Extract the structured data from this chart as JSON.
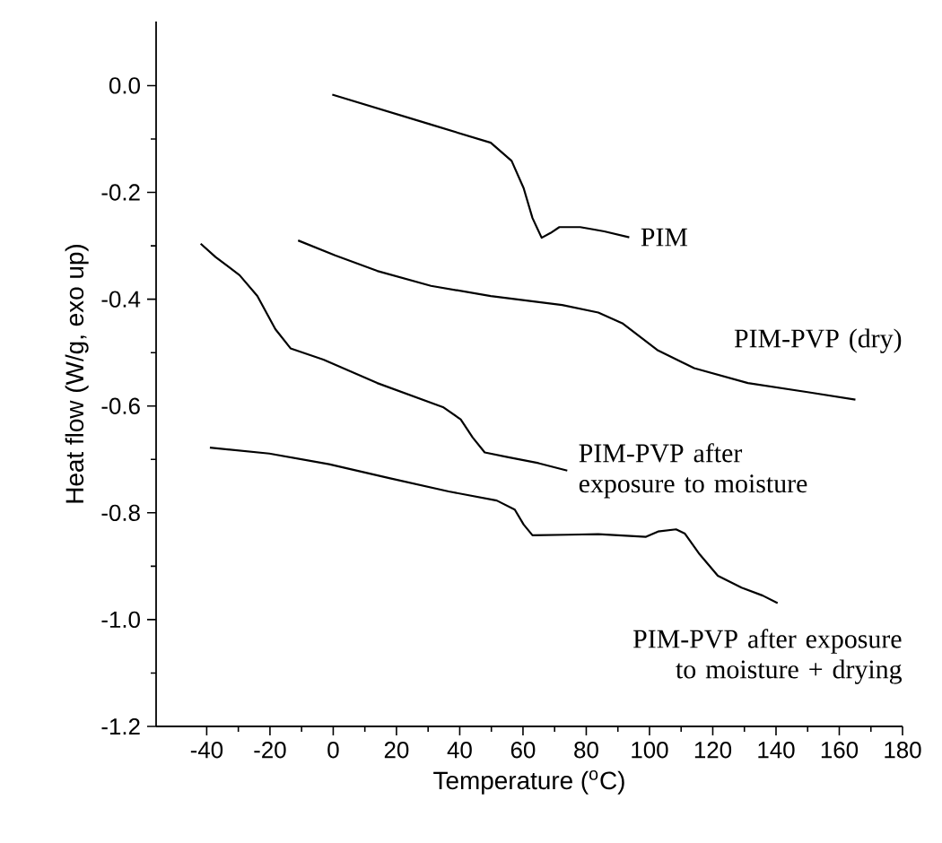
{
  "chart_data": {
    "type": "line",
    "xlabel": "Temperature ($^{o}$C)",
    "ylabel": "Heat flow (W/g, exo up)",
    "xlim": [
      -56,
      180
    ],
    "ylim": [
      -1.2,
      0.12
    ],
    "xticks": [
      -40,
      -20,
      0,
      20,
      40,
      60,
      80,
      100,
      120,
      140,
      160,
      180
    ],
    "yticks": [
      {
        "value": 0,
        "label": "0.0"
      },
      -0.2,
      -0.4,
      -0.6,
      -0.8,
      {
        "value": -1,
        "label": "-1.0"
      },
      -1.2
    ],
    "grid": false,
    "line_style": "solid",
    "series": [
      {
        "name": "PIM",
        "color": "#000000",
        "x": [
          -0.3,
          30.9,
          49.8,
          56.4,
          60.2,
          63,
          65.9,
          68.7,
          71.5,
          78.1,
          85.7,
          93.6
        ],
        "values": [
          -0.017,
          -0.073,
          -0.107,
          -0.141,
          -0.192,
          -0.248,
          -0.285,
          -0.276,
          -0.265,
          -0.265,
          -0.273,
          -0.284
        ]
      },
      {
        "name": "PIM-PVP (dry)",
        "color": "#000000",
        "x": [
          -11.1,
          0.6,
          13.9,
          30.9,
          49.8,
          72.4,
          83.8,
          91.4,
          102.7,
          114.1,
          131.1,
          150,
          165.1
        ],
        "values": [
          -0.29,
          -0.318,
          -0.347,
          -0.375,
          -0.394,
          -0.411,
          -0.425,
          -0.445,
          -0.496,
          -0.529,
          -0.557,
          -0.574,
          -0.588
        ]
      },
      {
        "name": "PIM-PVP after exposure to moisture",
        "color": "#000000",
        "x": [
          -41.9,
          -37.2,
          -29.6,
          -24,
          -18.3,
          -13.5,
          -3.1,
          13.9,
          34.7,
          40.3,
          44.1,
          47.9,
          55.4,
          64.9,
          74
        ],
        "values": [
          -0.296,
          -0.321,
          -0.355,
          -0.394,
          -0.456,
          -0.492,
          -0.513,
          -0.557,
          -0.602,
          -0.625,
          -0.659,
          -0.687,
          -0.696,
          -0.707,
          -0.721
        ]
      },
      {
        "name": "PIM-PVP after exposure to moisture + drying",
        "color": "#000000",
        "x": [
          -39,
          -20.2,
          -1.3,
          17.7,
          36.5,
          51.7,
          57.4,
          60.2,
          63,
          74.4,
          83.8,
          98.9,
          102.7,
          108.4,
          111.2,
          115.9,
          121.6,
          129.1,
          135.8,
          140.5
        ],
        "values": [
          -0.678,
          -0.689,
          -0.709,
          -0.735,
          -0.76,
          -0.777,
          -0.794,
          -0.822,
          -0.842,
          -0.841,
          -0.84,
          -0.845,
          -0.835,
          -0.831,
          -0.839,
          -0.878,
          -0.918,
          -0.94,
          -0.955,
          -0.969
        ]
      }
    ]
  }
}
